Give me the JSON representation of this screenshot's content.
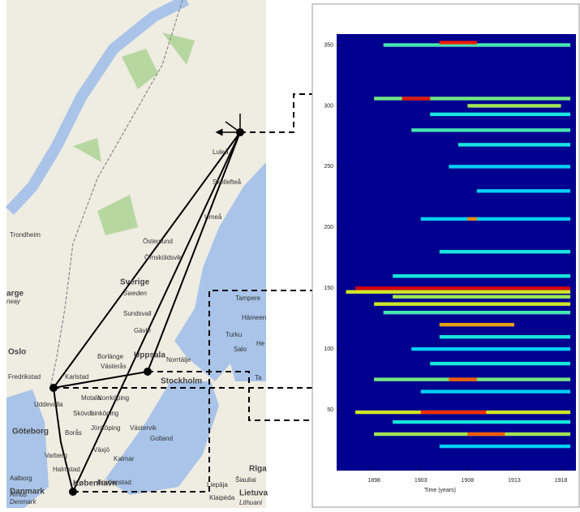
{
  "map": {
    "labels": [
      "Luleå",
      "Skellefteå",
      "Umeå",
      "Östersund",
      "Örnsköldsvik",
      "Sverige",
      "Sweden",
      "Sundsvall",
      "Trondheim",
      "Tampere",
      "Turku",
      "Salo",
      "Oslo",
      "Fredrikstad",
      "Karlstad",
      "Västerås",
      "Uppsala",
      "Norrtälje",
      "Stockholm",
      "Borlänge",
      "Gävle",
      "Uddevalla",
      "Motala",
      "Norrköping",
      "Skövde",
      "Linköping",
      "Göteborg",
      "Borås",
      "Jönköping",
      "Västervik",
      "Gotland",
      "Varberg",
      "Växjö",
      "Kalmar",
      "Halmstad",
      "Aalborg",
      "Århus",
      "København",
      "Kristianstad",
      "Danmark",
      "Denmark",
      "Liepāja",
      "Klaipėda",
      "Šiauliai",
      "Lietuva",
      "Lithuani",
      "Rīga",
      "arge",
      "rway",
      "Hämeen",
      "He",
      "Ta"
    ]
  },
  "heatmap": {
    "type": "heatmap",
    "x_label": "Time (years)",
    "xlim": [
      1894,
      1919.6
    ],
    "xticks": [
      1898,
      1903,
      1908,
      1913,
      1918
    ],
    "ylim": [
      0,
      359
    ],
    "yticks": [
      50,
      100,
      150,
      200,
      250,
      300,
      350
    ],
    "streaks": [
      {
        "y": 350,
        "x0": 1899,
        "x1": 1919,
        "level": 0.45
      },
      {
        "y": 352,
        "x0": 1905,
        "x1": 1909,
        "level": 0.85
      },
      {
        "y": 306,
        "x0": 1898,
        "x1": 1919,
        "level": 0.5
      },
      {
        "y": 306,
        "x0": 1901,
        "x1": 1904,
        "level": 0.9
      },
      {
        "y": 300,
        "x0": 1908,
        "x1": 1918,
        "level": 0.55
      },
      {
        "y": 293,
        "x0": 1904,
        "x1": 1919,
        "level": 0.4
      },
      {
        "y": 280,
        "x0": 1902,
        "x1": 1919,
        "level": 0.45
      },
      {
        "y": 268,
        "x0": 1907,
        "x1": 1919,
        "level": 0.4
      },
      {
        "y": 250,
        "x0": 1906,
        "x1": 1919,
        "level": 0.35
      },
      {
        "y": 230,
        "x0": 1909,
        "x1": 1919,
        "level": 0.35
      },
      {
        "y": 207,
        "x0": 1903,
        "x1": 1919,
        "level": 0.35
      },
      {
        "y": 207,
        "x0": 1908,
        "x1": 1909,
        "level": 0.75
      },
      {
        "y": 180,
        "x0": 1905,
        "x1": 1919,
        "level": 0.4
      },
      {
        "y": 160,
        "x0": 1900,
        "x1": 1919,
        "level": 0.4
      },
      {
        "y": 150,
        "x0": 1896,
        "x1": 1919,
        "level": 0.9
      },
      {
        "y": 147,
        "x0": 1895,
        "x1": 1919,
        "level": 0.6
      },
      {
        "y": 143,
        "x0": 1900,
        "x1": 1919,
        "level": 0.55
      },
      {
        "y": 137,
        "x0": 1898,
        "x1": 1919,
        "level": 0.6
      },
      {
        "y": 130,
        "x0": 1899,
        "x1": 1919,
        "level": 0.45
      },
      {
        "y": 120,
        "x0": 1905,
        "x1": 1913,
        "level": 0.7
      },
      {
        "y": 110,
        "x0": 1905,
        "x1": 1919,
        "level": 0.4
      },
      {
        "y": 100,
        "x0": 1902,
        "x1": 1919,
        "level": 0.35
      },
      {
        "y": 88,
        "x0": 1904,
        "x1": 1919,
        "level": 0.4
      },
      {
        "y": 75,
        "x0": 1898,
        "x1": 1919,
        "level": 0.5
      },
      {
        "y": 75,
        "x0": 1906,
        "x1": 1909,
        "level": 0.8
      },
      {
        "y": 65,
        "x0": 1903,
        "x1": 1919,
        "level": 0.35
      },
      {
        "y": 48,
        "x0": 1896,
        "x1": 1919,
        "level": 0.6
      },
      {
        "y": 48,
        "x0": 1903,
        "x1": 1910,
        "level": 0.85
      },
      {
        "y": 40,
        "x0": 1900,
        "x1": 1919,
        "level": 0.4
      },
      {
        "y": 30,
        "x0": 1898,
        "x1": 1919,
        "level": 0.55
      },
      {
        "y": 30,
        "x0": 1908,
        "x1": 1912,
        "level": 0.8
      },
      {
        "y": 20,
        "x0": 1905,
        "x1": 1919,
        "level": 0.35
      }
    ]
  }
}
